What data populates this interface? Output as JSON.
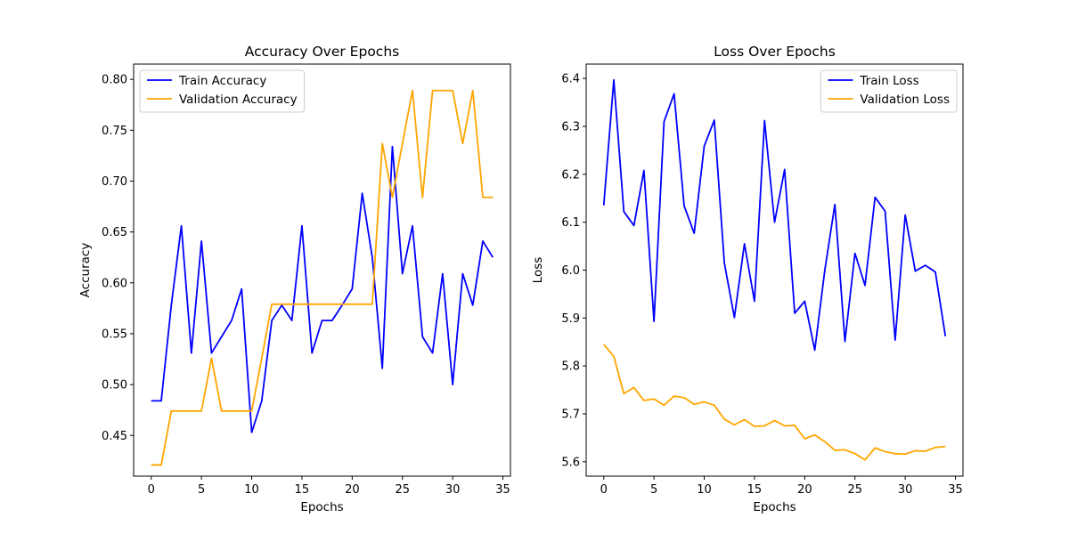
{
  "colors": {
    "train": "#0000ff",
    "validation": "#ffa500"
  },
  "chart_data": [
    {
      "type": "line",
      "title": "Accuracy Over Epochs",
      "xlabel": "Epochs",
      "ylabel": "Accuracy",
      "xlim": [
        -1.75,
        35.75
      ],
      "ylim": [
        0.41,
        0.815
      ],
      "xticks": [
        0,
        5,
        10,
        15,
        20,
        25,
        30,
        35
      ],
      "yticks": [
        0.45,
        0.5,
        0.55,
        0.6,
        0.65,
        0.7,
        0.75,
        0.8
      ],
      "ytick_decimals": 2,
      "legend_position": "top-left",
      "grid": false,
      "x": [
        0,
        1,
        2,
        3,
        4,
        5,
        6,
        7,
        8,
        9,
        10,
        11,
        12,
        13,
        14,
        15,
        16,
        17,
        18,
        19,
        20,
        21,
        22,
        23,
        24,
        25,
        26,
        27,
        28,
        29,
        30,
        31,
        32,
        33,
        34
      ],
      "series": [
        {
          "name": "Train Accuracy",
          "color_key": "train",
          "values": [
            0.484,
            0.484,
            0.578,
            0.656,
            0.531,
            0.641,
            0.531,
            0.547,
            0.563,
            0.594,
            0.453,
            0.484,
            0.563,
            0.578,
            0.563,
            0.656,
            0.531,
            0.563,
            0.563,
            0.578,
            0.594,
            0.688,
            0.625,
            0.516,
            0.734,
            0.609,
            0.656,
            0.547,
            0.531,
            0.609,
            0.5,
            0.609,
            0.578,
            0.641,
            0.625
          ]
        },
        {
          "name": "Validation Accuracy",
          "color_key": "validation",
          "values": [
            0.421,
            0.421,
            0.474,
            0.474,
            0.474,
            0.474,
            0.526,
            0.474,
            0.474,
            0.474,
            0.474,
            0.526,
            0.579,
            0.579,
            0.579,
            0.579,
            0.579,
            0.579,
            0.579,
            0.579,
            0.579,
            0.579,
            0.579,
            0.737,
            0.684,
            0.737,
            0.789,
            0.684,
            0.789,
            0.789,
            0.789,
            0.737,
            0.789,
            0.684,
            0.684
          ]
        }
      ]
    },
    {
      "type": "line",
      "title": "Loss Over Epochs",
      "xlabel": "Epochs",
      "ylabel": "Loss",
      "xlim": [
        -1.75,
        35.75
      ],
      "ylim": [
        5.57,
        6.43
      ],
      "xticks": [
        0,
        5,
        10,
        15,
        20,
        25,
        30,
        35
      ],
      "yticks": [
        5.6,
        5.7,
        5.8,
        5.9,
        6.0,
        6.1,
        6.2,
        6.3,
        6.4
      ],
      "ytick_decimals": 1,
      "legend_position": "top-right",
      "grid": false,
      "x": [
        0,
        1,
        2,
        3,
        4,
        5,
        6,
        7,
        8,
        9,
        10,
        11,
        12,
        13,
        14,
        15,
        16,
        17,
        18,
        19,
        20,
        21,
        22,
        23,
        24,
        25,
        26,
        27,
        28,
        29,
        30,
        31,
        32,
        33,
        34
      ],
      "series": [
        {
          "name": "Train Loss",
          "color_key": "train",
          "values": [
            6.135,
            6.397,
            6.122,
            6.093,
            6.208,
            5.893,
            6.31,
            6.368,
            6.134,
            6.077,
            6.259,
            6.313,
            6.015,
            5.901,
            6.055,
            5.935,
            6.312,
            6.1,
            6.21,
            5.91,
            5.935,
            5.833,
            6.0,
            6.137,
            5.851,
            6.035,
            5.968,
            6.152,
            6.123,
            5.854,
            6.115,
            5.998,
            6.01,
            5.996,
            5.862
          ]
        },
        {
          "name": "Validation Loss",
          "color_key": "validation",
          "values": [
            5.845,
            5.82,
            5.742,
            5.755,
            5.728,
            5.731,
            5.718,
            5.737,
            5.734,
            5.72,
            5.725,
            5.718,
            5.689,
            5.677,
            5.688,
            5.674,
            5.675,
            5.686,
            5.675,
            5.676,
            5.648,
            5.656,
            5.642,
            5.624,
            5.625,
            5.617,
            5.604,
            5.629,
            5.621,
            5.617,
            5.616,
            5.623,
            5.622,
            5.63,
            5.632
          ]
        }
      ]
    }
  ]
}
